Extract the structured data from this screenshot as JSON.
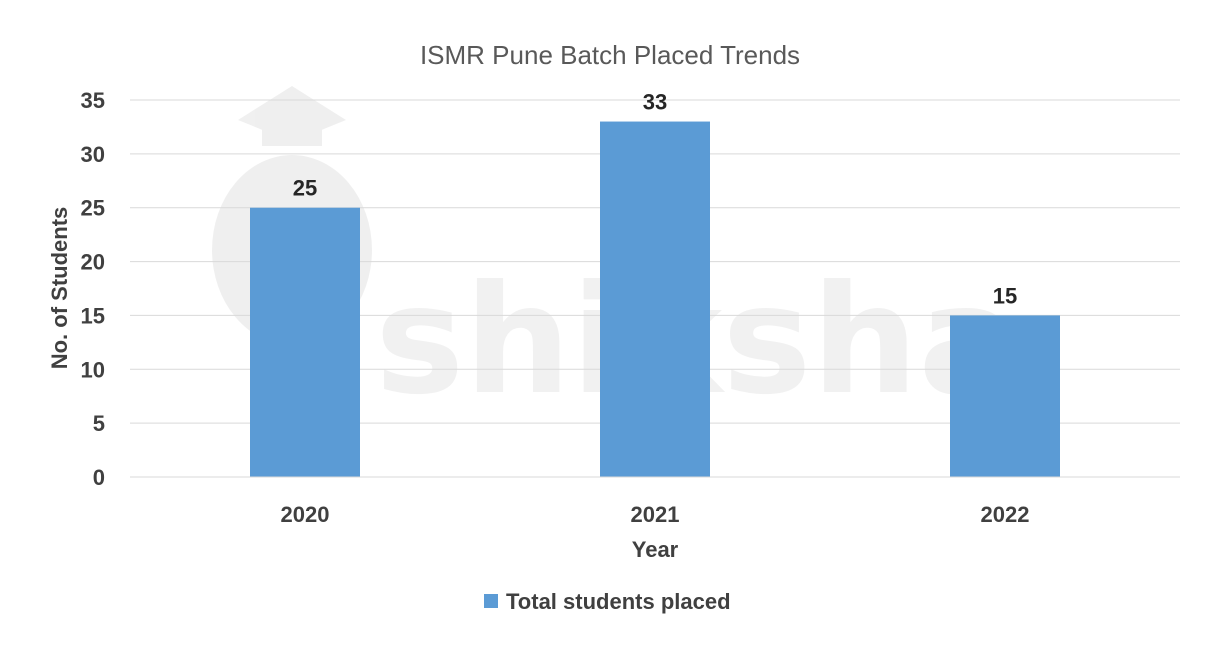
{
  "chart_data": {
    "type": "bar",
    "title": "ISMR Pune Batch Placed Trends",
    "xlabel": "Year",
    "ylabel": "No. of Students",
    "categories": [
      "2020",
      "2021",
      "2022"
    ],
    "series": [
      {
        "name": "Total students placed",
        "values": [
          25,
          33,
          15
        ]
      }
    ],
    "ylim": [
      0,
      35
    ],
    "yticks": [
      0,
      5,
      10,
      15,
      20,
      25,
      30,
      35
    ],
    "grid": true,
    "legend_position": "bottom",
    "bar_color": "#5b9bd5",
    "data_labels": true
  },
  "watermark": {
    "text": "shiksha"
  }
}
